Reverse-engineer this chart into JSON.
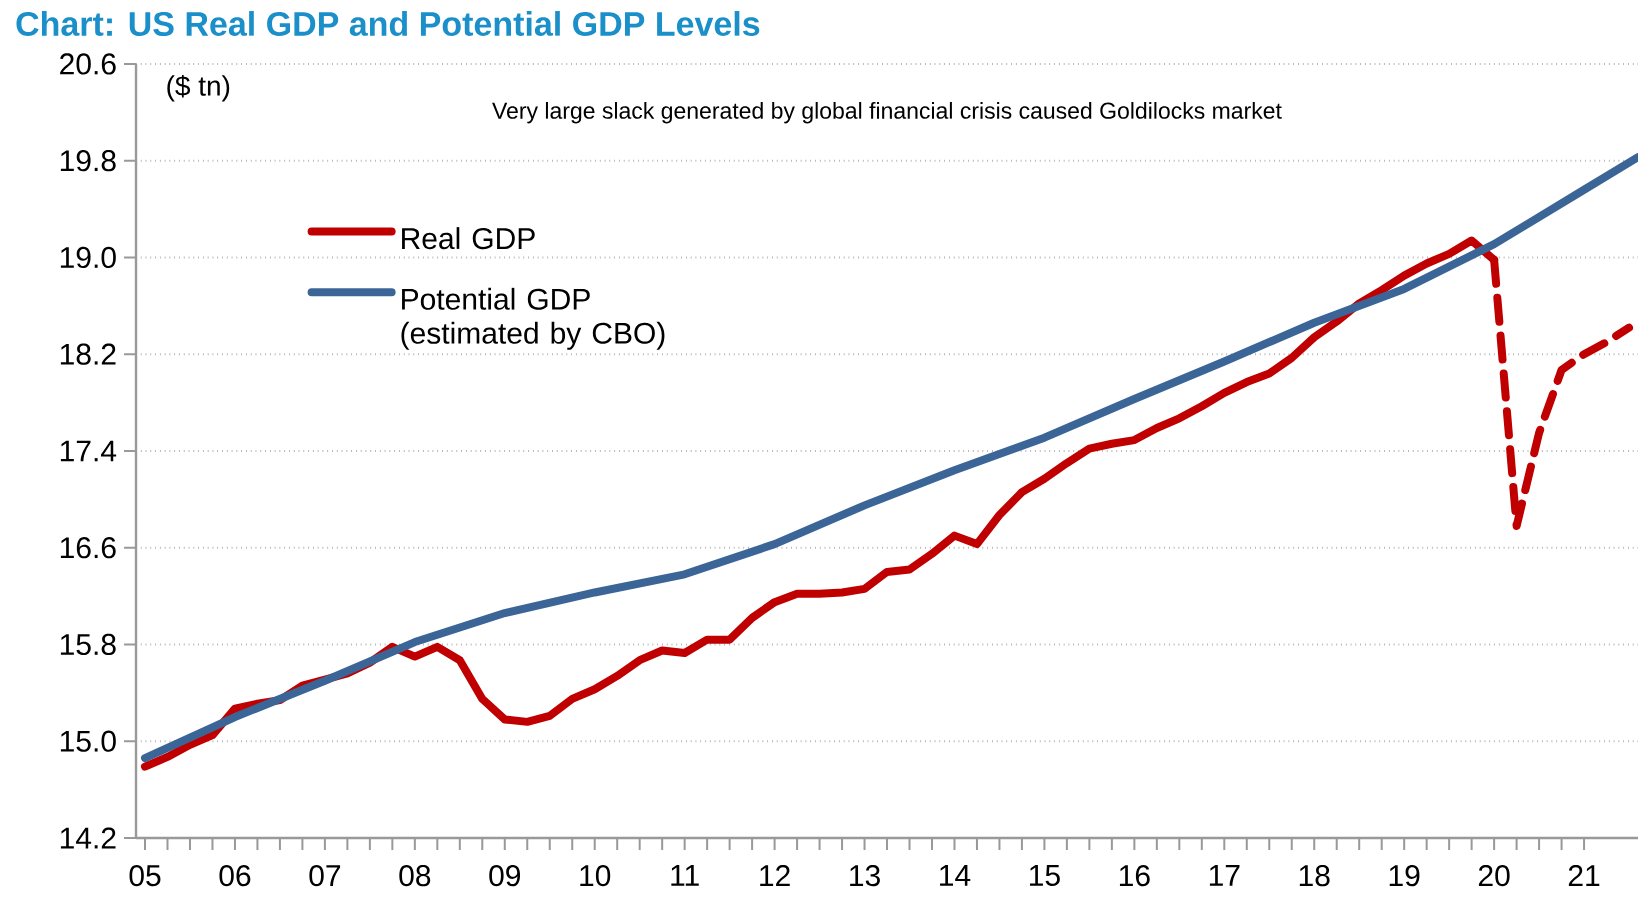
{
  "chart_data": {
    "type": "line",
    "title": "Chart: US Real GDP and Potential GDP Levels",
    "ylabel": "($ tn)",
    "annotations": [
      "Very large slack generated by global financial crisis caused Goldilocks market"
    ],
    "xlim": [
      2004.9,
      2021.6
    ],
    "xticks": [
      {
        "value": 2005,
        "label": "05"
      },
      {
        "value": 2006,
        "label": "06"
      },
      {
        "value": 2007,
        "label": "07"
      },
      {
        "value": 2008,
        "label": "08"
      },
      {
        "value": 2009,
        "label": "09"
      },
      {
        "value": 2010,
        "label": "10"
      },
      {
        "value": 2011,
        "label": "11"
      },
      {
        "value": 2012,
        "label": "12"
      },
      {
        "value": 2013,
        "label": "13"
      },
      {
        "value": 2014,
        "label": "14"
      },
      {
        "value": 2015,
        "label": "15"
      },
      {
        "value": 2016,
        "label": "16"
      },
      {
        "value": 2017,
        "label": "17"
      },
      {
        "value": 2018,
        "label": "18"
      },
      {
        "value": 2019,
        "label": "19"
      },
      {
        "value": 2020,
        "label": "20"
      },
      {
        "value": 2021,
        "label": "21"
      }
    ],
    "ylim": [
      14.2,
      20.6
    ],
    "yticks": [
      14.2,
      {
        "value": 15,
        "label": "15.0"
      },
      15.8,
      16.6,
      17.4,
      18.2,
      {
        "value": 19,
        "label": "19.0"
      },
      19.8,
      20.6
    ],
    "grid": "y",
    "legend": "top left",
    "line_style": "solid",
    "series": [
      {
        "name": "Real  GDP",
        "color": "#c00000",
        "x": [
          2005,
          2005.25,
          2005.5,
          2005.75,
          2006,
          2006.25,
          2006.5,
          2006.75,
          2007,
          2007.25,
          2007.5,
          2007.75,
          2008,
          2008.25,
          2008.5,
          2008.75,
          2009,
          2009.25,
          2009.5,
          2009.75,
          2010,
          2010.25,
          2010.5,
          2010.75,
          2011,
          2011.25,
          2011.5,
          2011.75,
          2012,
          2012.25,
          2012.5,
          2012.75,
          2013,
          2013.25,
          2013.5,
          2013.75,
          2014,
          2014.25,
          2014.5,
          2014.75,
          2015,
          2015.25,
          2015.5,
          2015.75,
          2016,
          2016.25,
          2016.5,
          2016.75,
          2017,
          2017.25,
          2017.5,
          2017.75,
          2018,
          2018.25,
          2018.5,
          2018.75,
          2019,
          2019.25,
          2019.5,
          2019.75,
          2020
        ],
        "values": [
          14.79,
          14.87,
          14.97,
          15.05,
          15.27,
          15.31,
          15.34,
          15.46,
          15.51,
          15.56,
          15.65,
          15.78,
          15.7,
          15.78,
          15.67,
          15.35,
          15.18,
          15.16,
          15.21,
          15.35,
          15.43,
          15.54,
          15.67,
          15.75,
          15.73,
          15.84,
          15.84,
          16.02,
          16.15,
          16.22,
          16.22,
          16.23,
          16.26,
          16.4,
          16.42,
          16.55,
          16.7,
          16.63,
          16.87,
          17.06,
          17.17,
          17.3,
          17.42,
          17.46,
          17.49,
          17.59,
          17.67,
          17.77,
          17.88,
          17.97,
          18.04,
          18.17,
          18.34,
          18.47,
          18.62,
          18.73,
          18.85,
          18.95,
          19.03,
          19.14,
          18.98
        ]
      },
      {
        "color": "#c00000",
        "line_style": "dashed",
        "x": [
          2020,
          2020.25,
          2020.5,
          2020.75,
          2021,
          2021.25,
          2021.5
        ],
        "values": [
          18.98,
          16.78,
          17.55,
          18.07,
          18.2,
          18.3,
          18.42
        ]
      },
      {
        "name": "Potential GDP (estimated by CBO)",
        "color": "#3b6597",
        "x": [
          2005,
          2006,
          2007,
          2008,
          2009,
          2010,
          2011,
          2012,
          2013,
          2014,
          2015,
          2016,
          2017,
          2018,
          2019,
          2020,
          2021,
          2021.6
        ],
        "values": [
          14.86,
          15.2,
          15.5,
          15.82,
          16.06,
          16.23,
          16.38,
          16.63,
          16.95,
          17.24,
          17.51,
          17.83,
          18.14,
          18.46,
          18.74,
          19.11,
          19.56,
          19.83
        ]
      }
    ]
  }
}
